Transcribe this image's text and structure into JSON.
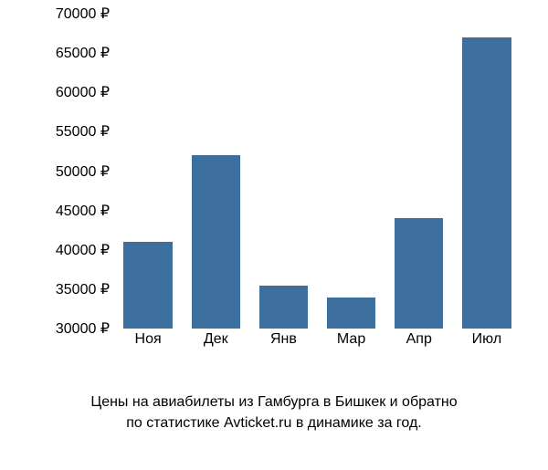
{
  "price_chart": {
    "type": "bar",
    "categories": [
      "Ноя",
      "Дек",
      "Янв",
      "Мар",
      "Апр",
      "Июл"
    ],
    "values": [
      41000,
      52000,
      35500,
      34000,
      44000,
      67000
    ],
    "bar_color": "#3c6e9e",
    "background_color": "#ffffff",
    "ylim_min": 30000,
    "ylim_max": 70000,
    "ytick_step": 5000,
    "bar_width_fraction": 0.72,
    "label_fontsize": 16,
    "caption_fontsize": 16,
    "text_color": "#000000",
    "currency_suffix": " ₽",
    "y_ticks": [
      {
        "value": 30000,
        "label": "30000 ₽"
      },
      {
        "value": 35000,
        "label": "35000 ₽"
      },
      {
        "value": 40000,
        "label": "40000 ₽"
      },
      {
        "value": 45000,
        "label": "45000 ₽"
      },
      {
        "value": 50000,
        "label": "50000 ₽"
      },
      {
        "value": 55000,
        "label": "55000 ₽"
      },
      {
        "value": 60000,
        "label": "60000 ₽"
      },
      {
        "value": 65000,
        "label": "65000 ₽"
      },
      {
        "value": 70000,
        "label": "70000 ₽"
      }
    ]
  },
  "caption": {
    "line1": "Цены на авиабилеты из Гамбурга в Бишкек и обратно",
    "line2": "по статистике Avticket.ru в динамике за год."
  }
}
